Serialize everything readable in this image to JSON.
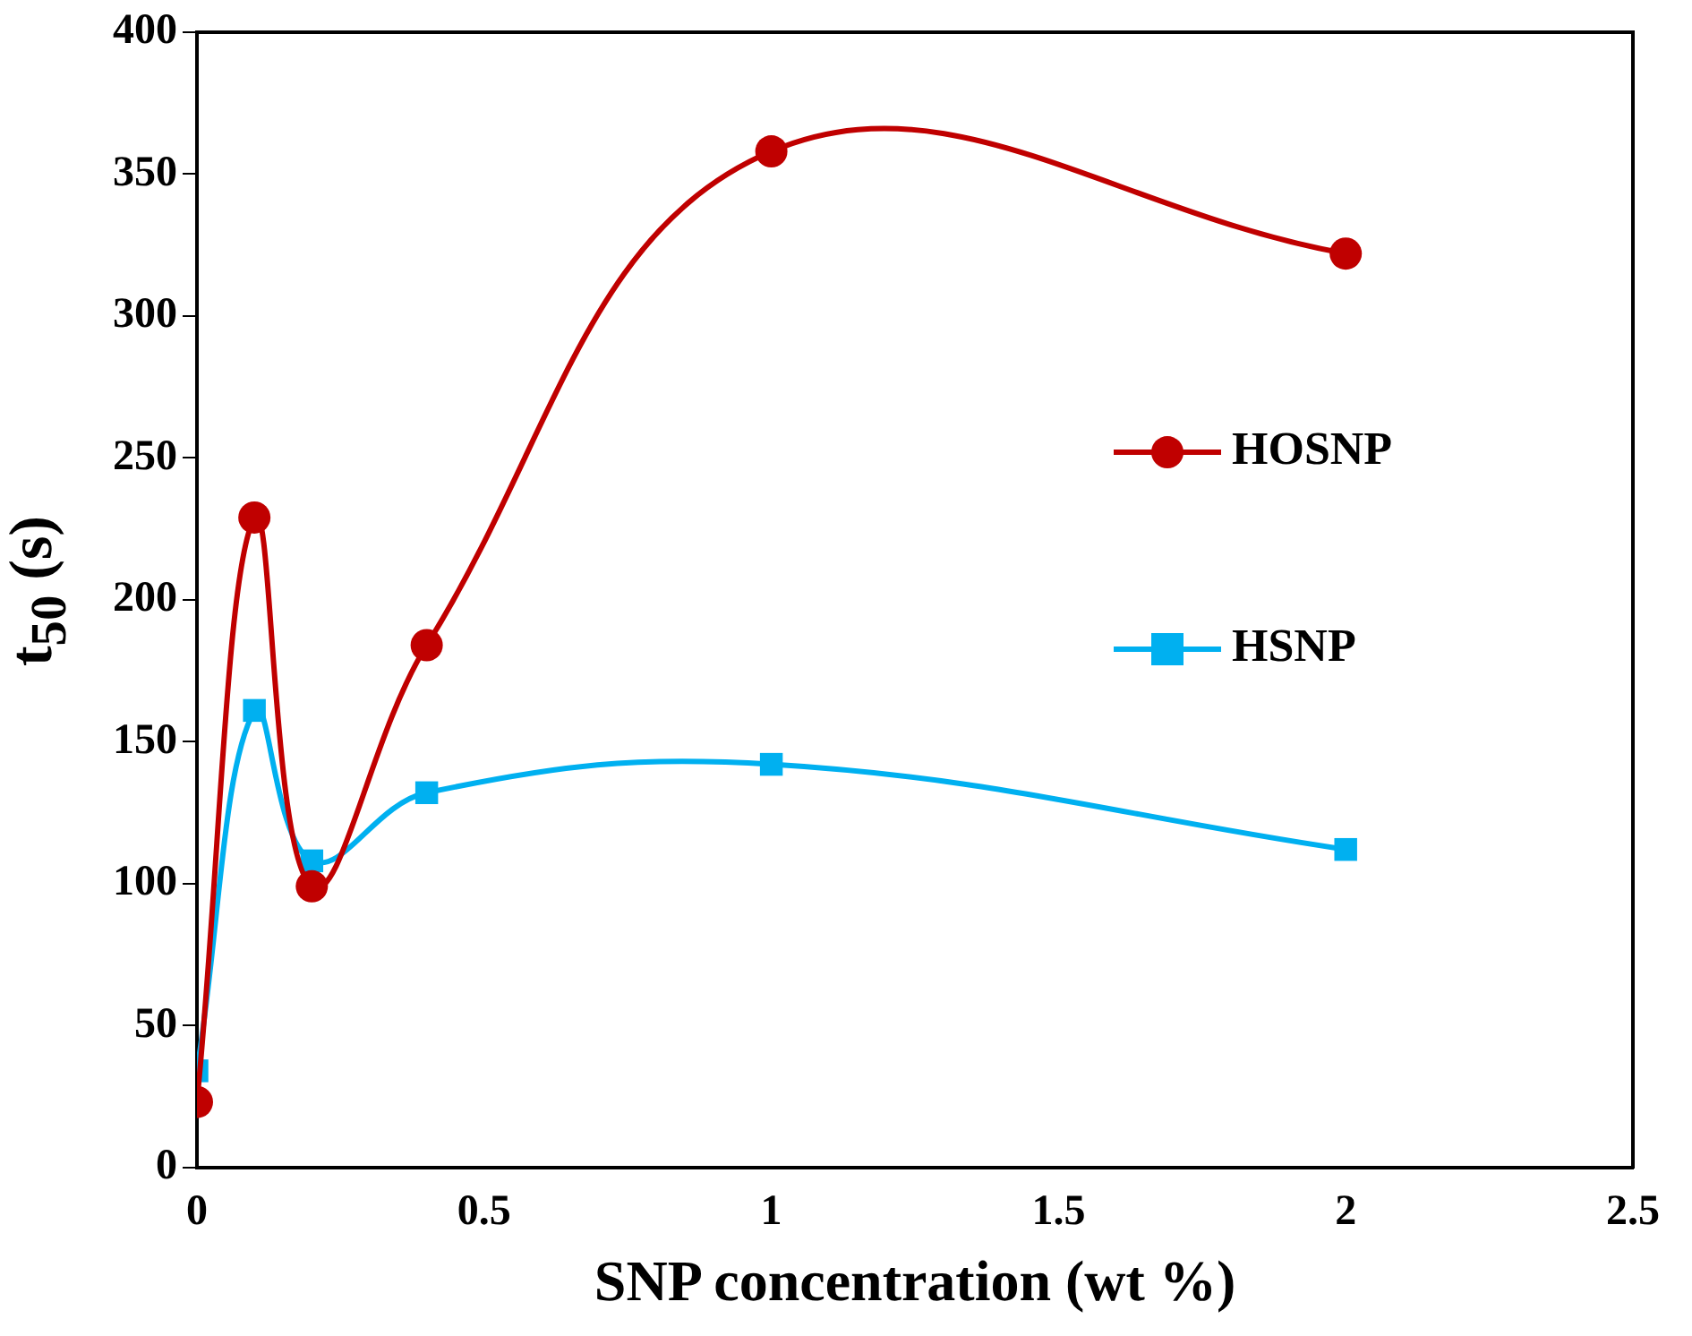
{
  "chart_data": {
    "type": "line",
    "xlabel": "SNP concentration (wt %)",
    "ylabel": "t$_{50}$  (s)",
    "x": [
      0,
      0.1,
      0.2,
      0.4,
      1,
      2
    ],
    "series": [
      {
        "name": "HOSNP",
        "color": "#c00000",
        "marker": "circle",
        "values": [
          23,
          229,
          99,
          184,
          358,
          322
        ]
      },
      {
        "name": "HSNP",
        "color": "#00b0f0",
        "marker": "square",
        "values": [
          34,
          161,
          108,
          132,
          142,
          112
        ]
      }
    ],
    "xlim": [
      0,
      2.5
    ],
    "xticks": [
      0,
      0.5,
      1,
      1.5,
      2,
      2.5
    ],
    "ylim": [
      0,
      400
    ],
    "yticks": [
      0,
      50,
      100,
      150,
      200,
      250,
      300,
      350,
      400
    ],
    "grid": false,
    "legend": "right",
    "line_style": "solid"
  }
}
